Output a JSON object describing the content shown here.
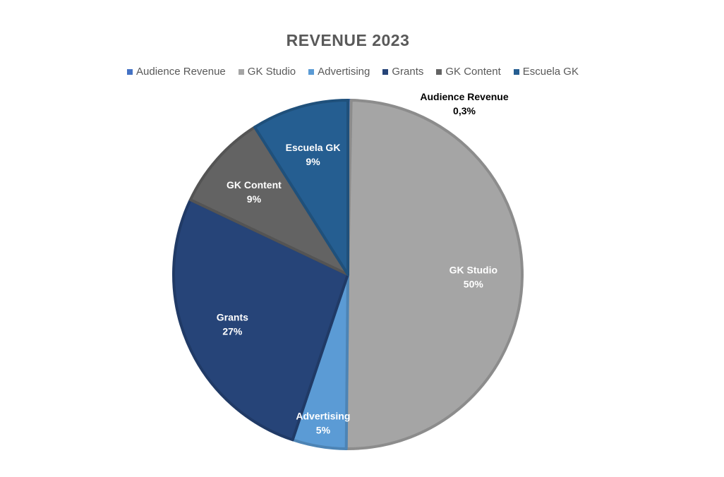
{
  "chart_data": {
    "type": "pie",
    "title": "REVENUE 2023",
    "legend_position": "top",
    "slices": [
      {
        "name": "Audience Revenue",
        "value": 0.3,
        "label": "0,3%",
        "color": "#4472C4",
        "label_color": "#000000"
      },
      {
        "name": "GK Studio",
        "value": 50,
        "label": "50%",
        "color": "#A5A5A5",
        "label_color": "#ffffff"
      },
      {
        "name": "Advertising",
        "value": 5,
        "label": "5%",
        "color": "#5B9BD5",
        "label_color": "#ffffff"
      },
      {
        "name": "Grants",
        "value": 27,
        "label": "27%",
        "color": "#264478",
        "label_color": "#ffffff"
      },
      {
        "name": "GK Content",
        "value": 9,
        "label": "9%",
        "color": "#636363",
        "label_color": "#ffffff"
      },
      {
        "name": "Escuela GK",
        "value": 9,
        "label": "9%",
        "color": "#255E91",
        "label_color": "#ffffff"
      }
    ]
  }
}
